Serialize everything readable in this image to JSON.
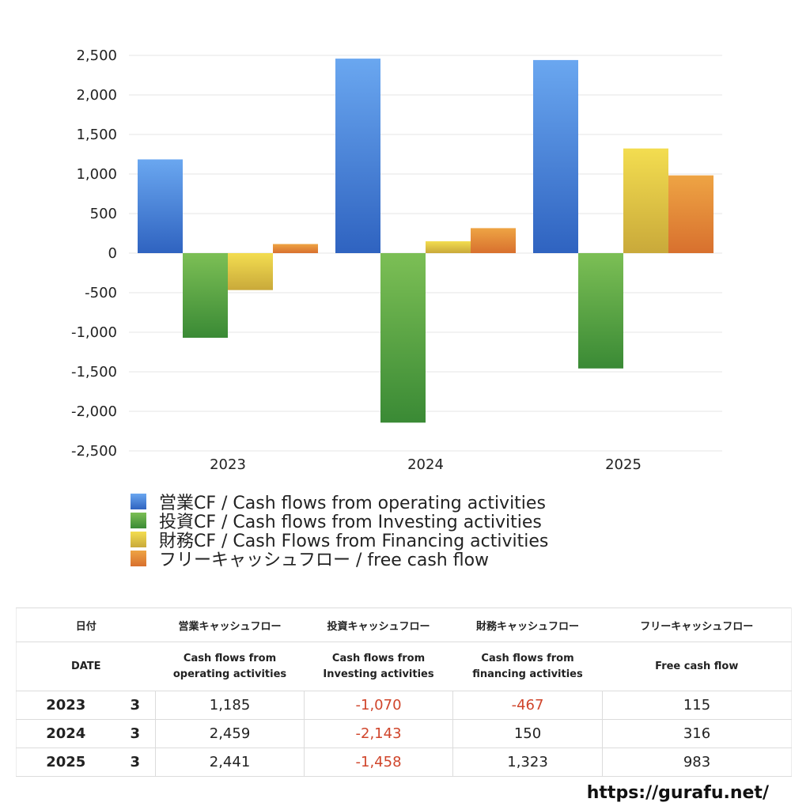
{
  "chart_data": {
    "type": "bar",
    "categories": [
      "2023",
      "2024",
      "2025"
    ],
    "ylim": [
      -2500,
      2500
    ],
    "yticks": [
      2500,
      2000,
      1500,
      1000,
      500,
      0,
      -500,
      -1000,
      -1500,
      -2000,
      -2500
    ],
    "ytick_labels": [
      "2,500",
      "2,000",
      "1,500",
      "1,000",
      "500",
      "0",
      "-500",
      "-1,000",
      "-1,500",
      "-2,000",
      "-2,500"
    ],
    "grid": true,
    "legend_position": "bottom",
    "series": [
      {
        "name": "営業CF / Cash flows from operating activities",
        "values": [
          1185,
          2459,
          2441
        ],
        "color_top": "#6aa7f0",
        "color_bottom": "#2f63c0"
      },
      {
        "name": "投資CF / Cash flows from Investing activities",
        "values": [
          -1070,
          -2143,
          -1458
        ],
        "color_top": "#7cbf55",
        "color_bottom": "#3a8a35"
      },
      {
        "name": "財務CF / Cash Flows from Financing activities",
        "values": [
          -467,
          150,
          1323
        ],
        "color_top": "#f3dd50",
        "color_bottom": "#c9a93a"
      },
      {
        "name": "フリーキャッシュフロー / free cash flow",
        "values": [
          115,
          316,
          983
        ],
        "color_top": "#eea444",
        "color_bottom": "#d8702e"
      }
    ]
  },
  "table": {
    "headers_jp": [
      "日付",
      "営業キャッシュフロー",
      "投資キャッシュフロー",
      "財務キャッシュフロー",
      "フリーキャッシュフロー"
    ],
    "headers_en": [
      "DATE",
      "Cash flows from\noperating activities",
      "Cash flows from\nInvesting activities",
      "Cash flows from\nfinancing activities",
      "Free cash flow"
    ],
    "rows": [
      {
        "year": "2023",
        "month": "3",
        "operating": "1,185",
        "investing": "-1,070",
        "financing": "-467",
        "free": "115"
      },
      {
        "year": "2024",
        "month": "3",
        "operating": "2,459",
        "investing": "-2,143",
        "financing": "150",
        "free": "316"
      },
      {
        "year": "2025",
        "month": "3",
        "operating": "2,441",
        "investing": "-1,458",
        "financing": "1,323",
        "free": "983"
      }
    ],
    "negative_color": "#d0452b"
  },
  "footer": {
    "url": "https://gurafu.net/"
  }
}
